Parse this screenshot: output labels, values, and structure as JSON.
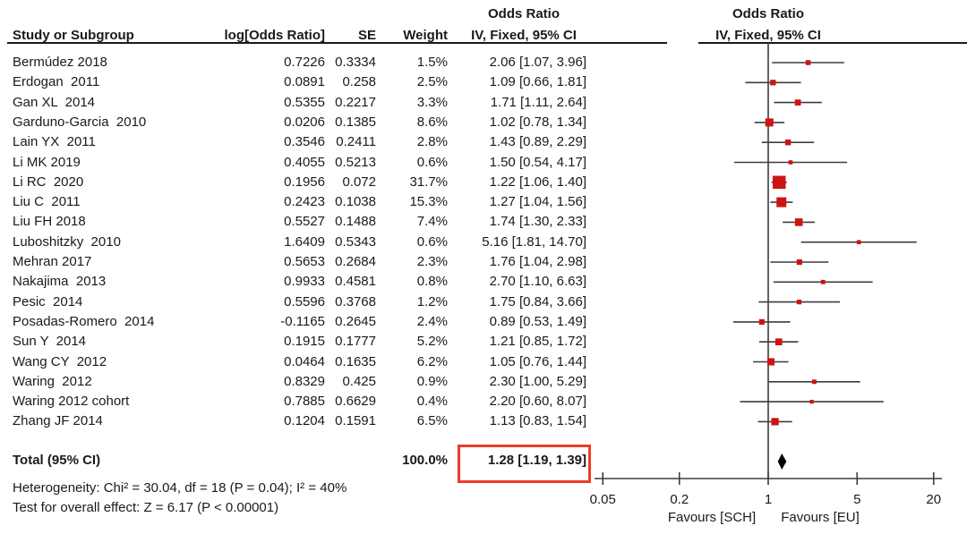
{
  "table": {
    "headers": {
      "study": "Study or Subgroup",
      "log_or": "log[Odds Ratio]",
      "se": "SE",
      "weight": "Weight",
      "or_line1": "Odds Ratio",
      "or_line2": "IV, Fixed, 95% CI"
    },
    "plot_header": {
      "line1": "Odds Ratio",
      "line2": "IV, Fixed, 95% CI"
    }
  },
  "chart_data": {
    "type": "forest",
    "x_scale": "log",
    "x_ticks": [
      0.05,
      0.2,
      1,
      5,
      20
    ],
    "x_tick_labels": [
      "0.05",
      "0.2",
      "1",
      "5",
      "20"
    ],
    "x_range": [
      0.05,
      20
    ],
    "favours_left": "Favours [SCH]",
    "favours_right": "Favours [EU]",
    "studies": [
      {
        "name": "Bermúdez 2018",
        "log_or": "0.7226",
        "se": "0.3334",
        "weight_text": "1.5%",
        "weight": 1.5,
        "or": 2.06,
        "low": 1.07,
        "high": 3.96,
        "ci_text": "2.06 [1.07, 3.96]"
      },
      {
        "name": "Erdogan  2011",
        "log_or": "0.0891",
        "se": "0.258",
        "weight_text": "2.5%",
        "weight": 2.5,
        "or": 1.09,
        "low": 0.66,
        "high": 1.81,
        "ci_text": "1.09 [0.66, 1.81]"
      },
      {
        "name": "Gan XL  2014",
        "log_or": "0.5355",
        "se": "0.2217",
        "weight_text": "3.3%",
        "weight": 3.3,
        "or": 1.71,
        "low": 1.11,
        "high": 2.64,
        "ci_text": "1.71 [1.11, 2.64]"
      },
      {
        "name": "Garduno-Garcia  2010",
        "log_or": "0.0206",
        "se": "0.1385",
        "weight_text": "8.6%",
        "weight": 8.6,
        "or": 1.02,
        "low": 0.78,
        "high": 1.34,
        "ci_text": "1.02 [0.78, 1.34]"
      },
      {
        "name": "Lain YX  2011",
        "log_or": "0.3546",
        "se": "0.2411",
        "weight_text": "2.8%",
        "weight": 2.8,
        "or": 1.43,
        "low": 0.89,
        "high": 2.29,
        "ci_text": "1.43 [0.89, 2.29]"
      },
      {
        "name": "Li MK 2019",
        "log_or": "0.4055",
        "se": "0.5213",
        "weight_text": "0.6%",
        "weight": 0.6,
        "or": 1.5,
        "low": 0.54,
        "high": 4.17,
        "ci_text": "1.50 [0.54, 4.17]"
      },
      {
        "name": "Li RC  2020",
        "log_or": "0.1956",
        "se": "0.072",
        "weight_text": "31.7%",
        "weight": 31.7,
        "or": 1.22,
        "low": 1.06,
        "high": 1.4,
        "ci_text": "1.22 [1.06, 1.40]"
      },
      {
        "name": "Liu C  2011",
        "log_or": "0.2423",
        "se": "0.1038",
        "weight_text": "15.3%",
        "weight": 15.3,
        "or": 1.27,
        "low": 1.04,
        "high": 1.56,
        "ci_text": "1.27 [1.04, 1.56]"
      },
      {
        "name": "Liu FH 2018",
        "log_or": "0.5527",
        "se": "0.1488",
        "weight_text": "7.4%",
        "weight": 7.4,
        "or": 1.74,
        "low": 1.3,
        "high": 2.33,
        "ci_text": "1.74 [1.30, 2.33]"
      },
      {
        "name": "Luboshitzky  2010",
        "log_or": "1.6409",
        "se": "0.5343",
        "weight_text": "0.6%",
        "weight": 0.6,
        "or": 5.16,
        "low": 1.81,
        "high": 14.7,
        "ci_text": "5.16 [1.81, 14.70]"
      },
      {
        "name": "Mehran 2017",
        "log_or": "0.5653",
        "se": "0.2684",
        "weight_text": "2.3%",
        "weight": 2.3,
        "or": 1.76,
        "low": 1.04,
        "high": 2.98,
        "ci_text": "1.76 [1.04, 2.98]"
      },
      {
        "name": "Nakajima  2013",
        "log_or": "0.9933",
        "se": "0.4581",
        "weight_text": "0.8%",
        "weight": 0.8,
        "or": 2.7,
        "low": 1.1,
        "high": 6.63,
        "ci_text": "2.70 [1.10, 6.63]"
      },
      {
        "name": "Pesic  2014",
        "log_or": "0.5596",
        "se": "0.3768",
        "weight_text": "1.2%",
        "weight": 1.2,
        "or": 1.75,
        "low": 0.84,
        "high": 3.66,
        "ci_text": "1.75 [0.84, 3.66]"
      },
      {
        "name": "Posadas-Romero  2014",
        "log_or": "-0.1165",
        "se": "0.2645",
        "weight_text": "2.4%",
        "weight": 2.4,
        "or": 0.89,
        "low": 0.53,
        "high": 1.49,
        "ci_text": "0.89 [0.53, 1.49]"
      },
      {
        "name": "Sun Y  2014",
        "log_or": "0.1915",
        "se": "0.1777",
        "weight_text": "5.2%",
        "weight": 5.2,
        "or": 1.21,
        "low": 0.85,
        "high": 1.72,
        "ci_text": "1.21 [0.85, 1.72]"
      },
      {
        "name": "Wang CY  2012",
        "log_or": "0.0464",
        "se": "0.1635",
        "weight_text": "6.2%",
        "weight": 6.2,
        "or": 1.05,
        "low": 0.76,
        "high": 1.44,
        "ci_text": "1.05 [0.76, 1.44]"
      },
      {
        "name": "Waring  2012",
        "log_or": "0.8329",
        "se": "0.425",
        "weight_text": "0.9%",
        "weight": 0.9,
        "or": 2.3,
        "low": 1.0,
        "high": 5.29,
        "ci_text": "2.30 [1.00, 5.29]"
      },
      {
        "name": "Waring 2012 cohort",
        "log_or": "0.7885",
        "se": "0.6629",
        "weight_text": "0.4%",
        "weight": 0.4,
        "or": 2.2,
        "low": 0.6,
        "high": 8.07,
        "ci_text": "2.20 [0.60, 8.07]"
      },
      {
        "name": "Zhang JF 2014",
        "log_or": "0.1204",
        "se": "0.1591",
        "weight_text": "6.5%",
        "weight": 6.5,
        "or": 1.13,
        "low": 0.83,
        "high": 1.54,
        "ci_text": "1.13 [0.83, 1.54]"
      }
    ],
    "total": {
      "label": "Total (95% CI)",
      "weight_text": "100.0%",
      "or": 1.28,
      "low": 1.19,
      "high": 1.39,
      "ci_text": "1.28 [1.19, 1.39]"
    },
    "heterogeneity": "Heterogeneity: Chi² = 30.04, df = 18 (P = 0.04); I² = 40%",
    "overall_effect": "Test for overall effect: Z = 6.17 (P < 0.00001)"
  },
  "colors": {
    "marker": "#cc1414",
    "ci_line": "#3d3d3d",
    "diamond": "#000000",
    "highlight_box": "#ee3b28",
    "text": "#1a1a1a"
  }
}
